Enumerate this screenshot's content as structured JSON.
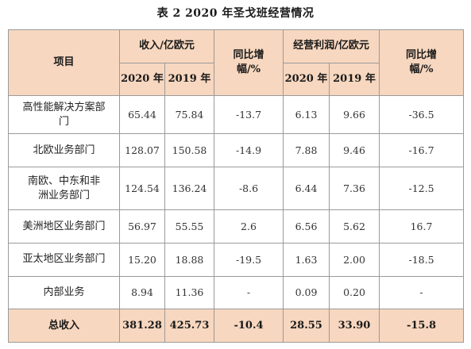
{
  "caption": "表 2   2020 年圣戈班经营情况",
  "header": {
    "item": "项目",
    "revenue_group": "收入/亿欧元",
    "revenue_yoy": "同比增幅/%",
    "profit_group": "经营利润/亿欧元",
    "profit_yoy": "同比增幅/%",
    "year_2020": "2020 年",
    "year_2019": "2019 年"
  },
  "rows": [
    {
      "item": "高性能解决方案部门",
      "rev2020": "65.44",
      "rev2019": "75.84",
      "rev_yoy": "-13.7",
      "op2020": "6.13",
      "op2019": "9.66",
      "op_yoy": "-36.5"
    },
    {
      "item": "北欧业务部门",
      "rev2020": "128.07",
      "rev2019": "150.58",
      "rev_yoy": "-14.9",
      "op2020": "7.88",
      "op2019": "9.46",
      "op_yoy": "-16.7"
    },
    {
      "item": "南欧、中东和非洲业务部门",
      "rev2020": "124.54",
      "rev2019": "136.24",
      "rev_yoy": "-8.6",
      "op2020": "6.44",
      "op2019": "7.36",
      "op_yoy": "-12.5"
    },
    {
      "item": "美洲地区业务部门",
      "rev2020": "56.97",
      "rev2019": "55.55",
      "rev_yoy": "2.6",
      "op2020": "6.56",
      "op2019": "5.62",
      "op_yoy": "16.7"
    },
    {
      "item": "亚太地区业务部门",
      "rev2020": "15.20",
      "rev2019": "18.88",
      "rev_yoy": "-19.5",
      "op2020": "1.63",
      "op2019": "2.00",
      "op_yoy": "-18.5"
    },
    {
      "item": "内部业务",
      "rev2020": "8.94",
      "rev2019": "11.36",
      "rev_yoy": "-",
      "op2020": "0.09",
      "op2019": "0.20",
      "op_yoy": "-"
    }
  ],
  "total": {
    "item": "总收入",
    "rev2020": "381.28",
    "rev2019": "425.73",
    "rev_yoy": "-10.4",
    "op2020": "28.55",
    "op2019": "33.90",
    "op_yoy": "-15.8"
  },
  "colors": {
    "header_fill": "#f7d7bf",
    "grid_line": "#9a9a9a",
    "background": "#ffffff"
  }
}
